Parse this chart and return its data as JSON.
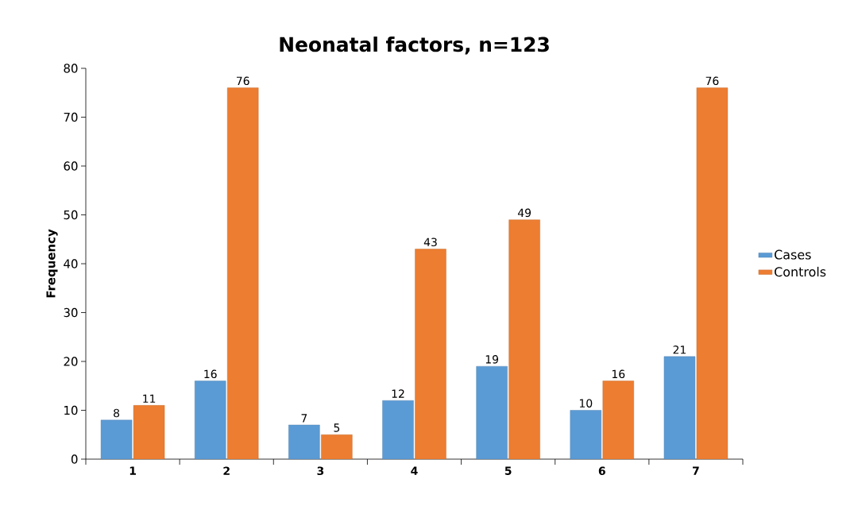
{
  "chart_data": {
    "type": "bar",
    "title": "Neonatal factors, n=123",
    "ylabel": "Frequency",
    "categories": [
      "1",
      "2",
      "3",
      "4",
      "5",
      "6",
      "7"
    ],
    "series": [
      {
        "name": "Cases",
        "color": "#5b9bd5",
        "values": [
          8,
          16,
          7,
          12,
          19,
          10,
          21
        ]
      },
      {
        "name": "Controls",
        "color": "#ed7d31",
        "values": [
          11,
          76,
          5,
          43,
          49,
          16,
          76
        ]
      }
    ],
    "ylim": [
      0,
      80
    ],
    "yticks": [
      0,
      10,
      20,
      30,
      40,
      50,
      60,
      70,
      80
    ],
    "legend": "right",
    "data_labels": true
  }
}
